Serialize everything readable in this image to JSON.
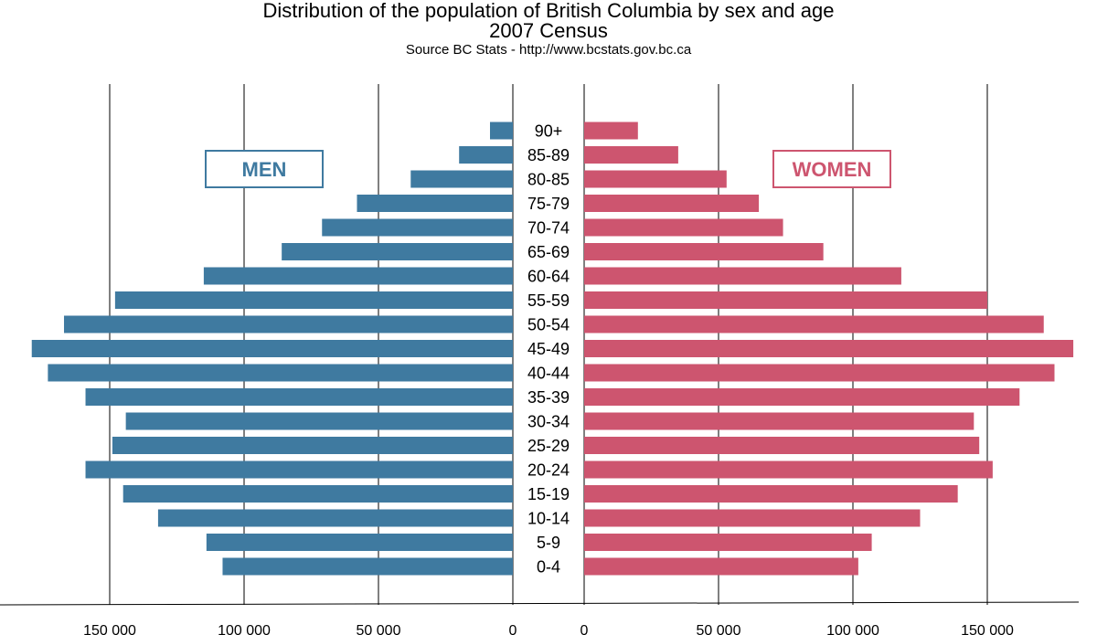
{
  "header": {
    "title": "Distribution of the population of British Columbia by sex and age",
    "subtitle": "2007 Census",
    "source": "Source BC Stats - http://www.bcstats.gov.bc.ca"
  },
  "colors": {
    "men": "#3f7aa0",
    "women": "#cd556f",
    "grid": "#000000"
  },
  "chart_data": {
    "type": "bar",
    "orientation": "horizontal",
    "layout": "population-pyramid",
    "categories": [
      "0-4",
      "5-9",
      "10-14",
      "15-19",
      "20-24",
      "25-29",
      "30-34",
      "35-39",
      "40-44",
      "45-49",
      "50-54",
      "55-59",
      "60-64",
      "65-69",
      "70-74",
      "75-79",
      "80-85",
      "85-89",
      "90+"
    ],
    "series": [
      {
        "name": "MEN",
        "side": "left",
        "values": [
          108000,
          114000,
          132000,
          145000,
          159000,
          149000,
          144000,
          159000,
          173000,
          179000,
          167000,
          148000,
          115000,
          86000,
          71000,
          58000,
          38000,
          20000,
          8500
        ]
      },
      {
        "name": "WOMEN",
        "side": "right",
        "values": [
          102000,
          107000,
          125000,
          139000,
          152000,
          147000,
          145000,
          162000,
          175000,
          182000,
          171000,
          150000,
          118000,
          89000,
          74000,
          65000,
          53000,
          35000,
          20000
        ]
      }
    ],
    "ticks": [
      0,
      50000,
      100000,
      150000
    ],
    "tick_labels": [
      "0",
      "50 000",
      "100 000",
      "150 000"
    ],
    "xlim": [
      0,
      182000
    ],
    "grid": true,
    "legend": [
      "MEN",
      "WOMEN"
    ]
  }
}
